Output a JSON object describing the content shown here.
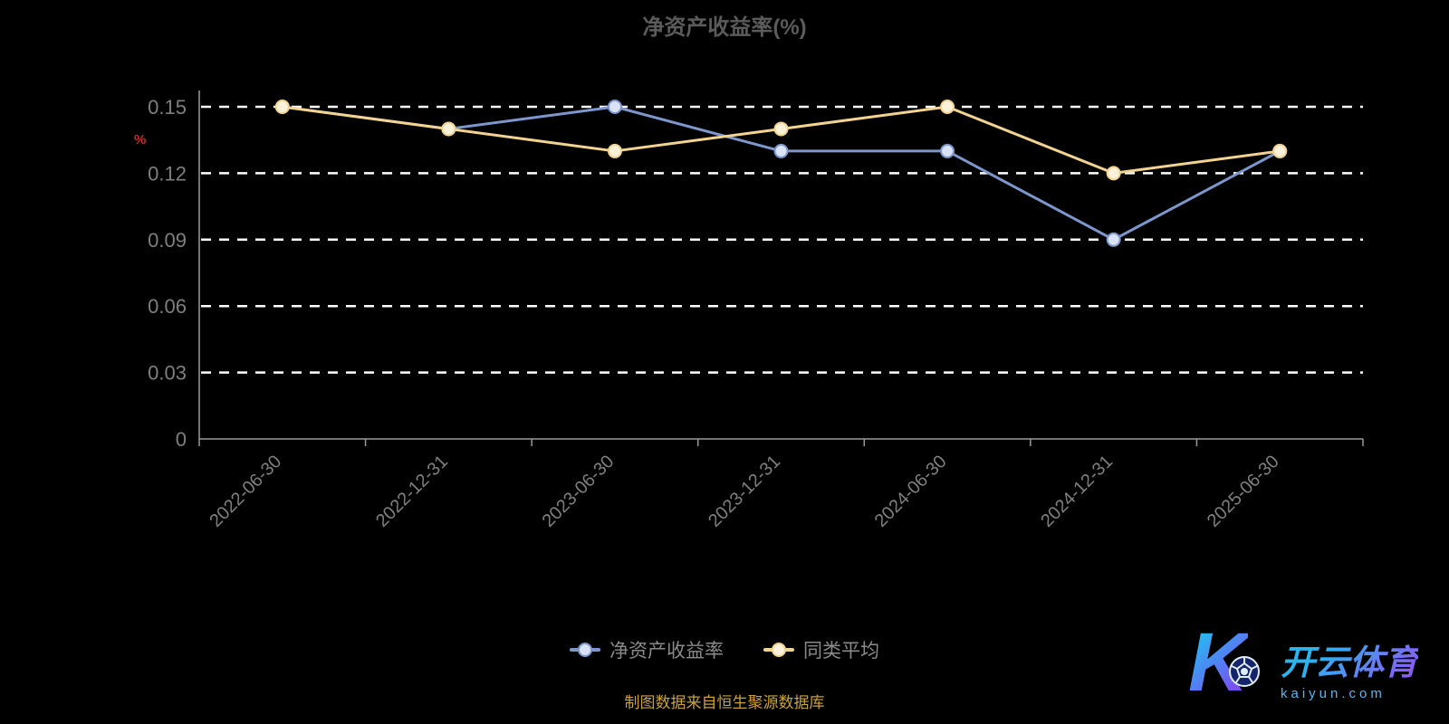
{
  "title": "净资产收益率(%)",
  "footer": "制图数据来自恒生聚源数据库",
  "watermark": {
    "letter": "K",
    "brand": "开云体育",
    "domain": "kaiyun.com"
  },
  "colors": {
    "grid": "#ffffff",
    "axis": "#9a9a9a",
    "tick_label": "#7f7f7f",
    "title": "#5b5b5b",
    "legend_label": "#8a8a8a",
    "footer": "#c9a23f",
    "unit_label": "#cc2a2a"
  },
  "chart_data": {
    "type": "line",
    "categories": [
      "2022-06-30",
      "2022-12-31",
      "2023-06-30",
      "2023-12-31",
      "2024-06-30",
      "2024-12-31",
      "2025-06-30"
    ],
    "series": [
      {
        "name": "净资产收益率",
        "color": "#7d96cc",
        "marker_fill": "#d9e3f5",
        "values": [
          0.15,
          0.14,
          0.15,
          0.13,
          0.13,
          0.09,
          0.13
        ]
      },
      {
        "name": "同类平均",
        "color": "#f3d391",
        "marker_fill": "#fdf2d9",
        "values": [
          0.15,
          0.14,
          0.13,
          0.14,
          0.15,
          0.12,
          0.13
        ]
      }
    ],
    "ylabel": "%",
    "ylim": [
      0,
      0.15
    ],
    "yticks": [
      0,
      0.03,
      0.06,
      0.09,
      0.12,
      0.15
    ],
    "grid": "dashed-horizontal",
    "legend_position": "bottom"
  }
}
